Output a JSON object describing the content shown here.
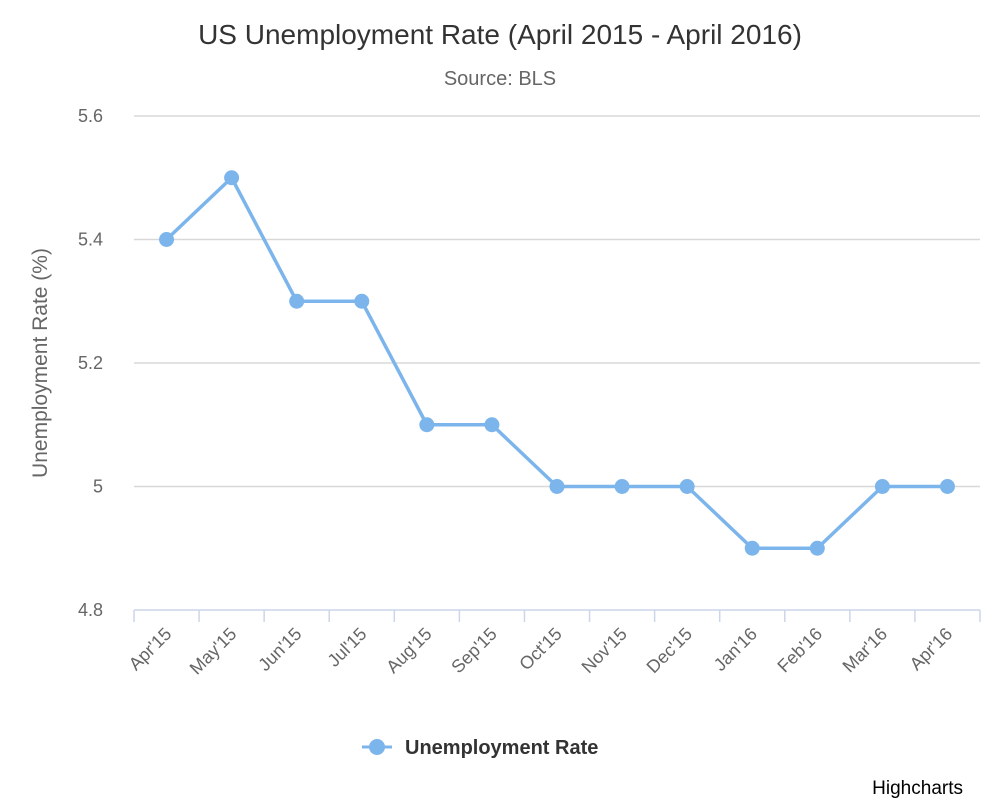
{
  "chart_data": {
    "type": "line",
    "title": "US Unemployment Rate (April 2015 - April 2016)",
    "subtitle": "Source: BLS",
    "ylabel": "Unemployment Rate (%)",
    "xlabel": "",
    "categories": [
      "Apr'15",
      "May'15",
      "Jun'15",
      "Jul'15",
      "Aug'15",
      "Sep'15",
      "Oct'15",
      "Nov'15",
      "Dec'15",
      "Jan'16",
      "Feb'16",
      "Mar'16",
      "Apr'16"
    ],
    "series": [
      {
        "name": "Unemployment Rate",
        "values": [
          5.4,
          5.5,
          5.3,
          5.3,
          5.1,
          5.1,
          5.0,
          5.0,
          5.0,
          4.9,
          4.9,
          5.0,
          5.0
        ],
        "color": "#7cb5ec"
      }
    ],
    "ylim": [
      4.8,
      5.6
    ],
    "yticks": [
      "4.8",
      "5",
      "5.2",
      "5.4",
      "5.6"
    ],
    "grid": true,
    "legend_position": "bottom-center",
    "credit": "Highcharts"
  }
}
